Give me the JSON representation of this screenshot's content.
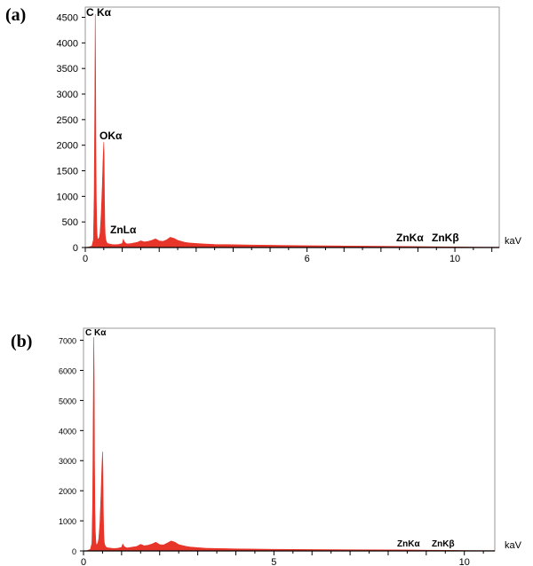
{
  "panels": [
    {
      "label": "(a)"
    },
    {
      "label": "(b)"
    }
  ],
  "chart_data": [
    {
      "type": "area",
      "panel": "(a)",
      "xunit": "kaV",
      "xlim": [
        0,
        11.2
      ],
      "ylim": [
        0,
        4700
      ],
      "xticks": [
        0,
        6,
        10
      ],
      "yticks": [
        0,
        500,
        1000,
        1500,
        2000,
        2500,
        3000,
        3500,
        4000,
        4500
      ],
      "color": "#e8352a",
      "series": [
        {
          "x": [
            0.0,
            0.1,
            0.18,
            0.22,
            0.24,
            0.26,
            0.27,
            0.28,
            0.29,
            0.3,
            0.31,
            0.32,
            0.33,
            0.34,
            0.36,
            0.38,
            0.4,
            0.43,
            0.46,
            0.48,
            0.5,
            0.51,
            0.52,
            0.53,
            0.54,
            0.55,
            0.56,
            0.58,
            0.6,
            0.65,
            0.72,
            0.8,
            0.9,
            1.0,
            1.03,
            1.06,
            1.1,
            1.15,
            1.25,
            1.4,
            1.5,
            1.6,
            1.7,
            1.8,
            1.9,
            2.0,
            2.1,
            2.2,
            2.3,
            2.4,
            2.5,
            2.6,
            2.7,
            2.8,
            3.0,
            3.2,
            3.5,
            4.0,
            4.5,
            5.0,
            5.5,
            6.0,
            7.0,
            8.0,
            8.63,
            9.0,
            9.57,
            10.0,
            10.5,
            11.2
          ],
          "y": [
            0,
            10,
            30,
            150,
            1000,
            3100,
            4560,
            3400,
            1730,
            900,
            450,
            250,
            180,
            160,
            170,
            200,
            280,
            650,
            1200,
            1700,
            2060,
            1800,
            900,
            450,
            250,
            180,
            140,
            100,
            80,
            70,
            60,
            55,
            60,
            80,
            160,
            110,
            80,
            70,
            80,
            100,
            130,
            110,
            120,
            140,
            170,
            130,
            120,
            150,
            200,
            180,
            140,
            120,
            100,
            90,
            80,
            70,
            60,
            55,
            50,
            45,
            40,
            35,
            30,
            25,
            20,
            18,
            15,
            12,
            8,
            5
          ]
        }
      ],
      "annotations": [
        "C Kα",
        "OKα",
        "ZnLα",
        "ZnKα",
        "ZnKβ"
      ]
    },
    {
      "type": "area",
      "panel": "(b)",
      "xunit": "kaV",
      "xlim": [
        0,
        10.8
      ],
      "ylim": [
        0,
        7400
      ],
      "xticks": [
        0,
        5,
        10
      ],
      "yticks": [
        0,
        1000,
        2000,
        3000,
        4000,
        5000,
        6000,
        7000
      ],
      "color": "#e8352a",
      "series": [
        {
          "x": [
            0.0,
            0.1,
            0.18,
            0.22,
            0.24,
            0.26,
            0.27,
            0.28,
            0.29,
            0.3,
            0.31,
            0.32,
            0.33,
            0.34,
            0.36,
            0.38,
            0.4,
            0.43,
            0.46,
            0.48,
            0.5,
            0.51,
            0.52,
            0.53,
            0.54,
            0.55,
            0.56,
            0.58,
            0.6,
            0.65,
            0.72,
            0.8,
            0.9,
            1.0,
            1.03,
            1.06,
            1.1,
            1.15,
            1.25,
            1.4,
            1.5,
            1.6,
            1.7,
            1.8,
            1.9,
            2.0,
            2.1,
            2.2,
            2.3,
            2.4,
            2.5,
            2.6,
            2.7,
            2.8,
            3.0,
            3.2,
            3.5,
            4.0,
            4.5,
            5.0,
            5.5,
            6.0,
            7.0,
            8.0,
            8.63,
            9.0,
            9.57,
            10.0,
            10.5,
            10.8
          ],
          "y": [
            0,
            15,
            50,
            250,
            1600,
            5500,
            7100,
            5800,
            3000,
            1400,
            700,
            400,
            250,
            200,
            220,
            280,
            400,
            900,
            1900,
            2700,
            3300,
            2800,
            1400,
            700,
            380,
            250,
            200,
            150,
            120,
            100,
            90,
            80,
            90,
            120,
            230,
            160,
            120,
            100,
            120,
            150,
            220,
            170,
            190,
            230,
            290,
            210,
            200,
            260,
            330,
            290,
            210,
            180,
            150,
            130,
            110,
            90,
            80,
            70,
            60,
            55,
            50,
            45,
            40,
            35,
            30,
            25,
            20,
            15,
            10,
            8
          ]
        }
      ],
      "annotations": [
        "C Kα",
        "ZnKα",
        "ZnKβ"
      ]
    }
  ]
}
